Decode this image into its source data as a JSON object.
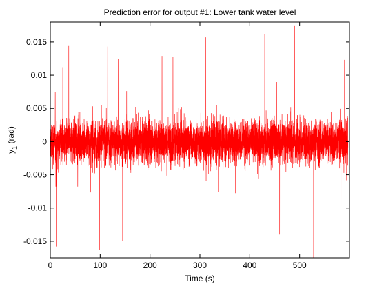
{
  "chart_data": {
    "type": "line",
    "title": "Prediction error for output #1: Lower tank water level",
    "xlabel": "Time (s)",
    "ylabel_main": "y",
    "ylabel_sub": "1",
    "ylabel_unit": " (rad)",
    "xlim": [
      0,
      600
    ],
    "ylim": [
      -0.0175,
      0.018
    ],
    "xticks": [
      0,
      100,
      200,
      300,
      400,
      500
    ],
    "xtick_labels": [
      "0",
      "100",
      "200",
      "300",
      "400",
      "500"
    ],
    "yticks": [
      -0.015,
      -0.01,
      -0.005,
      0,
      0.005,
      0.01,
      0.015
    ],
    "ytick_labels": [
      "-0.015",
      "-0.01",
      "-0.005",
      "0",
      "0.005",
      "0.01",
      "0.015"
    ],
    "grid": false,
    "series": [
      {
        "color": "#ff0000",
        "n_points": 6000,
        "typical_abs_max": 0.005,
        "peak_abs_max": 0.0175,
        "spikes": [
          {
            "x": 25,
            "y": 0.0112
          },
          {
            "x": 37,
            "y": 0.0145
          },
          {
            "x": 115,
            "y": 0.0143
          },
          {
            "x": 136,
            "y": 0.0124
          },
          {
            "x": 190,
            "y": -0.013
          },
          {
            "x": 224,
            "y": 0.0129
          },
          {
            "x": 246,
            "y": 0.0128
          },
          {
            "x": 312,
            "y": 0.0157
          },
          {
            "x": 320,
            "y": -0.0167
          },
          {
            "x": 430,
            "y": 0.0162
          },
          {
            "x": 490,
            "y": 0.0175
          },
          {
            "x": 528,
            "y": -0.0175
          },
          {
            "x": 99,
            "y": -0.0163
          },
          {
            "x": 145,
            "y": -0.015
          },
          {
            "x": 460,
            "y": -0.014
          },
          {
            "x": 583,
            "y": -0.0143
          },
          {
            "x": 12,
            "y": -0.0158
          },
          {
            "x": 590,
            "y": 0.0123
          }
        ]
      }
    ]
  }
}
